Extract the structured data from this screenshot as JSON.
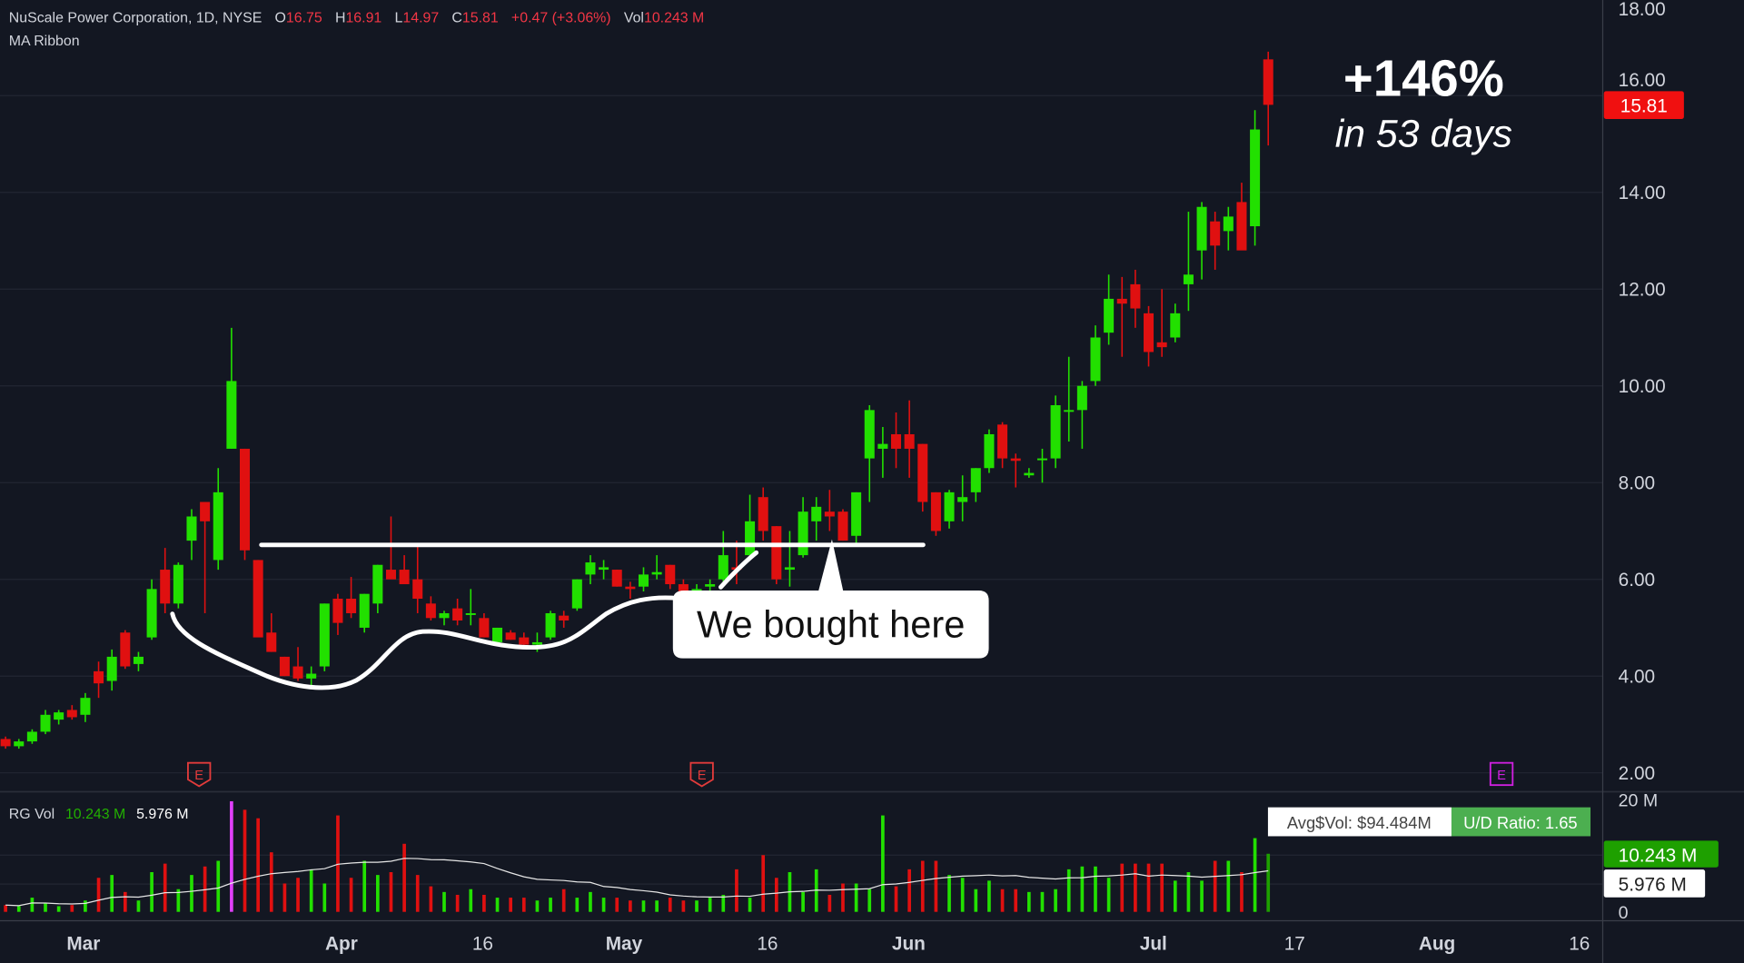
{
  "legend": {
    "title": "NuScale Power Corporation, 1D, NYSE",
    "o_label": "O",
    "o": "16.75",
    "h_label": "H",
    "h": "16.91",
    "l_label": "L",
    "l": "14.97",
    "c_label": "C",
    "c": "15.81",
    "change": "+0.47 (+3.06%)",
    "vol_label": "Vol",
    "vol": "10.243 M",
    "indicator": "MA Ribbon"
  },
  "volume_legend": {
    "name": "RG Vol",
    "value1": "10.243 M",
    "value2": "5.976 M"
  },
  "stats": {
    "avg_dollar_vol": "Avg$Vol: $94.484M",
    "ud_ratio": "U/D Ratio: 1.65"
  },
  "annotations": {
    "gain": "+146%",
    "period": "in 53 days",
    "callout": "We bought here"
  },
  "earnings_markers": [
    "E",
    "E",
    "E"
  ],
  "price_axis": {
    "ticks": [
      "18.00",
      "16.00",
      "14.00",
      "12.00",
      "10.00",
      "8.00",
      "6.00",
      "4.00",
      "2.00"
    ],
    "last_price": "15.81"
  },
  "volume_axis": {
    "ticks": [
      "20 M",
      "0"
    ],
    "last_volume": "10.243 M",
    "avg_volume": "5.976 M"
  },
  "time_axis": {
    "ticks": [
      "Mar",
      "Apr",
      "16",
      "May",
      "16",
      "Jun",
      "Jul",
      "17",
      "Aug",
      "16"
    ]
  },
  "colors": {
    "background": "#131722",
    "up": "#22e000",
    "down": "#e01010",
    "highlight": "#e040fb",
    "grid": "#232733",
    "text": "#d1d4dc"
  },
  "chart_data": {
    "type": "candlestick",
    "ylim": [
      2,
      18
    ],
    "volume_ylim": [
      0,
      20
    ],
    "candles": [
      [
        2.7,
        2.75,
        2.5,
        2.55
      ],
      [
        2.55,
        2.7,
        2.5,
        2.65
      ],
      [
        2.65,
        2.9,
        2.6,
        2.85
      ],
      [
        2.85,
        3.3,
        2.8,
        3.2
      ],
      [
        3.1,
        3.3,
        3.0,
        3.25
      ],
      [
        3.3,
        3.4,
        3.1,
        3.15
      ],
      [
        3.2,
        3.65,
        3.05,
        3.55
      ],
      [
        4.1,
        4.3,
        3.55,
        3.85
      ],
      [
        3.9,
        4.55,
        3.7,
        4.4
      ],
      [
        4.9,
        4.95,
        4.15,
        4.2
      ],
      [
        4.25,
        4.5,
        4.1,
        4.4
      ],
      [
        4.8,
        6.0,
        4.75,
        5.8
      ],
      [
        6.2,
        6.65,
        5.3,
        5.5
      ],
      [
        5.5,
        6.35,
        5.4,
        6.3
      ],
      [
        6.8,
        7.45,
        6.4,
        7.3
      ],
      [
        7.6,
        7.6,
        5.3,
        7.2
      ],
      [
        6.4,
        8.3,
        6.2,
        7.8
      ],
      [
        8.7,
        11.2,
        8.7,
        10.1
      ],
      [
        8.7,
        8.7,
        6.4,
        6.6
      ],
      [
        6.4,
        6.4,
        4.9,
        4.8
      ],
      [
        4.9,
        5.3,
        4.5,
        4.5
      ],
      [
        4.4,
        4.4,
        4.0,
        4.0
      ],
      [
        4.2,
        4.6,
        3.9,
        3.95
      ],
      [
        3.95,
        4.2,
        3.8,
        4.05
      ],
      [
        4.2,
        5.5,
        4.1,
        5.5
      ],
      [
        5.6,
        5.7,
        4.85,
        5.1
      ],
      [
        5.6,
        6.05,
        5.2,
        5.3
      ],
      [
        5.0,
        5.7,
        4.9,
        5.7
      ],
      [
        5.5,
        6.3,
        5.3,
        6.3
      ],
      [
        6.2,
        7.3,
        6.05,
        6.0
      ],
      [
        6.2,
        6.5,
        5.95,
        5.9
      ],
      [
        6.0,
        6.7,
        5.3,
        5.6
      ],
      [
        5.5,
        5.65,
        5.15,
        5.2
      ],
      [
        5.2,
        5.35,
        5.05,
        5.3
      ],
      [
        5.4,
        5.6,
        5.05,
        5.15
      ],
      [
        5.3,
        5.8,
        5.05,
        5.3
      ],
      [
        5.2,
        5.3,
        4.8,
        4.8
      ],
      [
        4.7,
        5.0,
        4.65,
        5.0
      ],
      [
        4.9,
        4.95,
        4.75,
        4.75
      ],
      [
        4.8,
        4.9,
        4.6,
        4.65
      ],
      [
        4.65,
        4.9,
        4.5,
        4.7
      ],
      [
        4.8,
        5.35,
        4.75,
        5.3
      ],
      [
        5.25,
        5.35,
        5.0,
        5.15
      ],
      [
        5.4,
        6.0,
        5.35,
        6.0
      ],
      [
        6.1,
        6.5,
        5.9,
        6.35
      ],
      [
        6.2,
        6.4,
        6.0,
        6.25
      ],
      [
        6.2,
        6.2,
        5.85,
        5.85
      ],
      [
        5.85,
        5.95,
        5.6,
        5.8
      ],
      [
        5.85,
        6.25,
        5.75,
        6.1
      ],
      [
        6.1,
        6.5,
        6.0,
        6.15
      ],
      [
        6.3,
        6.3,
        5.8,
        5.9
      ],
      [
        5.9,
        6.0,
        5.6,
        5.75
      ],
      [
        5.75,
        5.9,
        5.65,
        5.8
      ],
      [
        5.85,
        6.0,
        5.7,
        5.9
      ],
      [
        6.0,
        7.0,
        5.95,
        6.5
      ],
      [
        6.25,
        6.8,
        5.9,
        6.2
      ],
      [
        6.5,
        7.75,
        6.45,
        7.2
      ],
      [
        7.7,
        7.9,
        6.8,
        7.0
      ],
      [
        7.1,
        7.1,
        5.9,
        6.0
      ],
      [
        6.2,
        7.0,
        5.85,
        6.25
      ],
      [
        6.5,
        7.7,
        6.45,
        7.4
      ],
      [
        7.2,
        7.7,
        6.8,
        7.5
      ],
      [
        7.4,
        7.85,
        7.0,
        7.3
      ],
      [
        7.4,
        7.45,
        6.8,
        6.8
      ],
      [
        6.9,
        7.8,
        6.75,
        7.8
      ],
      [
        8.5,
        9.6,
        7.6,
        9.5
      ],
      [
        8.7,
        9.15,
        8.1,
        8.8
      ],
      [
        9.0,
        9.45,
        8.3,
        8.7
      ],
      [
        9.0,
        9.7,
        8.1,
        8.7
      ],
      [
        8.8,
        8.8,
        7.4,
        7.6
      ],
      [
        7.8,
        7.8,
        6.9,
        7.0
      ],
      [
        7.2,
        7.85,
        7.05,
        7.8
      ],
      [
        7.6,
        8.15,
        7.2,
        7.7
      ],
      [
        7.8,
        8.3,
        7.6,
        8.3
      ],
      [
        8.3,
        9.1,
        8.2,
        9.0
      ],
      [
        9.2,
        9.25,
        8.3,
        8.5
      ],
      [
        8.5,
        8.6,
        7.9,
        8.45
      ],
      [
        8.15,
        8.3,
        8.1,
        8.2
      ],
      [
        8.5,
        8.7,
        8.0,
        8.5
      ],
      [
        8.5,
        9.8,
        8.3,
        9.6
      ],
      [
        9.5,
        10.6,
        8.85,
        9.5
      ],
      [
        9.5,
        10.1,
        8.7,
        10.0
      ],
      [
        10.1,
        11.25,
        10.0,
        11.0
      ],
      [
        11.1,
        12.3,
        10.85,
        11.8
      ],
      [
        11.8,
        12.25,
        10.6,
        11.7
      ],
      [
        12.1,
        12.4,
        11.2,
        11.6
      ],
      [
        11.5,
        11.65,
        10.4,
        10.7
      ],
      [
        10.9,
        12.0,
        10.6,
        10.8
      ],
      [
        11.0,
        11.7,
        10.9,
        11.5
      ],
      [
        12.1,
        13.6,
        11.55,
        12.3
      ],
      [
        12.8,
        13.8,
        12.2,
        13.7
      ],
      [
        13.4,
        13.6,
        12.4,
        12.9
      ],
      [
        13.2,
        13.7,
        12.8,
        13.5
      ],
      [
        13.8,
        14.2,
        12.9,
        12.8
      ],
      [
        13.3,
        15.7,
        12.9,
        15.3
      ],
      [
        16.75,
        16.91,
        14.97,
        15.81
      ]
    ],
    "volumes": [
      1.2,
      1.0,
      2.5,
      1.5,
      1.0,
      1.2,
      2.0,
      6.0,
      6.5,
      3.5,
      2.0,
      7.0,
      8.5,
      4.0,
      6.5,
      8.0,
      9.0,
      19.5,
      18.0,
      16.5,
      10.5,
      5.0,
      6.0,
      7.5,
      5.0,
      17.0,
      6.0,
      9.0,
      6.5,
      7.0,
      12.0,
      6.5,
      4.5,
      3.5,
      3.0,
      4.0,
      3.0,
      2.5,
      2.5,
      2.5,
      2.0,
      2.5,
      4.0,
      2.5,
      3.5,
      2.5,
      2.5,
      2.0,
      2.0,
      2.0,
      2.5,
      2.0,
      2.0,
      2.5,
      3.0,
      7.5,
      2.5,
      10.0,
      6.0,
      7.0,
      3.5,
      7.5,
      3.0,
      5.0,
      5.0,
      4.0,
      17.0,
      4.5,
      7.5,
      9.0,
      9.0,
      6.5,
      6.0,
      4.0,
      5.5,
      4.0,
      4.0,
      3.5,
      3.5,
      4.0,
      7.5,
      8.0,
      8.0,
      6.0,
      8.5,
      8.5,
      8.5,
      8.5,
      5.5,
      7.0,
      5.5,
      9.0,
      9.0,
      7.0,
      13.0,
      10.243
    ],
    "highlight_volume_index": 17
  }
}
